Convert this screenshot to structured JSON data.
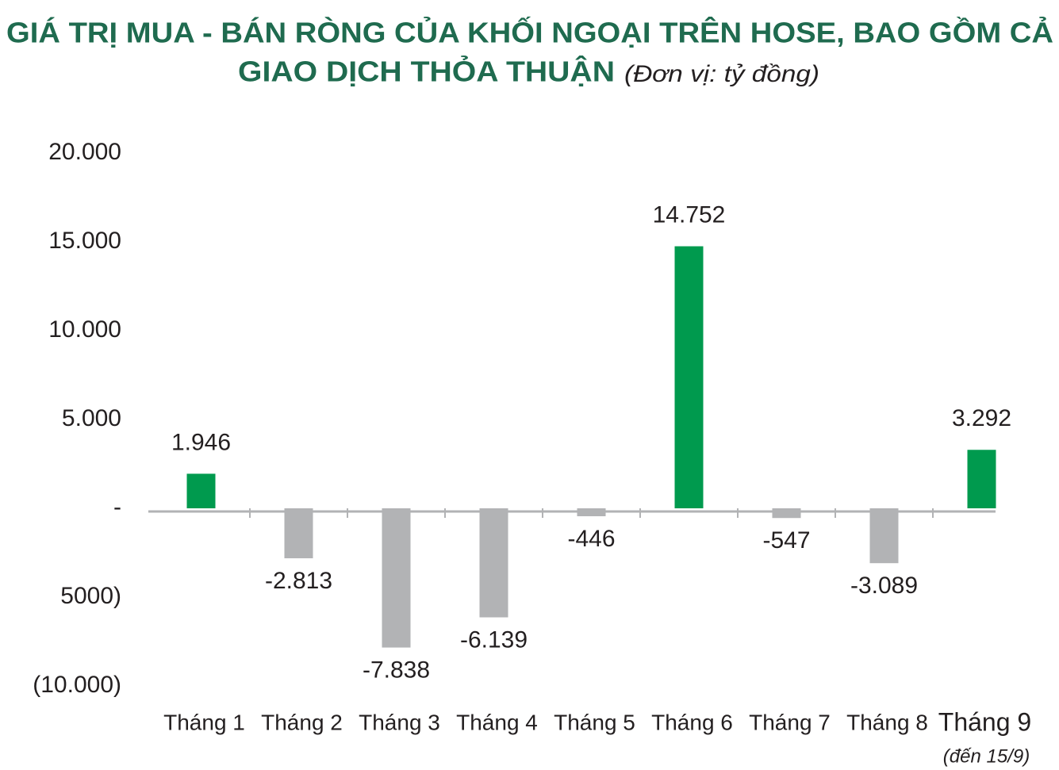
{
  "chart_data": {
    "type": "bar",
    "title": [
      "GIÁ TRỊ MUA - BÁN RÒNG CỦA KHỐI NGOẠI TRÊN HOSE, BAO GỒM CẢ",
      "GIAO DỊCH THỎA THUẬN"
    ],
    "subtitle": "(Đơn vị: tỷ đồng)",
    "categories": [
      "Tháng 1",
      "Tháng 2",
      "Tháng 3",
      "Tháng 4",
      "Tháng 5",
      "Tháng 6",
      "Tháng 7",
      "Tháng 8",
      "Tháng 9"
    ],
    "category_note": "(đến 15/9)",
    "values": [
      1946,
      -2813,
      -7838,
      -6139,
      -446,
      14752,
      -547,
      -3089,
      3292
    ],
    "value_labels": [
      "1.946",
      "-2.813",
      "-7.838",
      "-6.139",
      "-446",
      "14.752",
      "-547",
      "-3.089",
      "3.292"
    ],
    "positive_color": "#009a4e",
    "negative_color": "#b2b3b5",
    "ylim": [
      -10000,
      20000
    ],
    "yticks": [
      {
        "value": -10000,
        "label": "(10.000)"
      },
      {
        "value": -5000,
        "label": "5000)"
      },
      {
        "value": 0,
        "label": "-"
      },
      {
        "value": 5000,
        "label": "5.000"
      },
      {
        "value": 10000,
        "label": "10.000"
      },
      {
        "value": 15000,
        "label": "15.000"
      },
      {
        "value": 20000,
        "label": "20.000"
      }
    ],
    "grid": false
  }
}
